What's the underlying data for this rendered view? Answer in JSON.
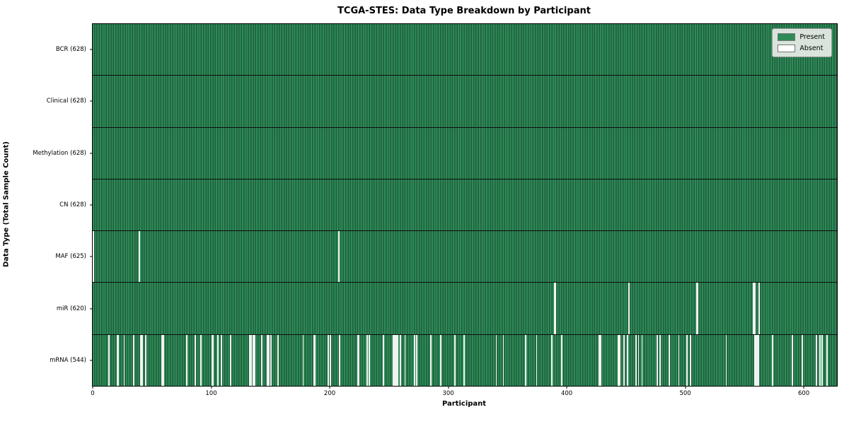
{
  "title": "TCGA-STES: Data Type Breakdown by Participant",
  "chart_data": {
    "type": "heatmap",
    "title": "TCGA-STES: Data Type Breakdown by Participant",
    "xlabel": "Participant",
    "ylabel": "Data Type (Total Sample Count)",
    "x_ticks": [
      0,
      100,
      200,
      300,
      400,
      500,
      600
    ],
    "x_range": [
      0,
      628
    ],
    "total_participants": 628,
    "grid": false,
    "legend": {
      "position": "upper right",
      "entries": [
        {
          "label": "Present",
          "color": "#2e8b57"
        },
        {
          "label": "Absent",
          "color": "#ffffff"
        }
      ]
    },
    "colors": {
      "present_fill": "#2e8b57",
      "present_edge": "#1e5e3c",
      "absent_fill": "#f2f3f1",
      "row_separator": "#0d0d0d"
    },
    "rows": [
      {
        "label": "BCR (628)",
        "data_type": "BCR",
        "present_count": 628,
        "absent_participants": []
      },
      {
        "label": "Clinical (628)",
        "data_type": "Clinical",
        "present_count": 628,
        "absent_participants": []
      },
      {
        "label": "Methylation (628)",
        "data_type": "Methylation",
        "present_count": 628,
        "absent_participants": []
      },
      {
        "label": "CN (628)",
        "data_type": "CN",
        "present_count": 628,
        "absent_participants": []
      },
      {
        "label": "MAF (625)",
        "data_type": "MAF",
        "present_count": 625,
        "absent_participants": [
          0,
          39,
          207
        ]
      },
      {
        "label": "miR (620)",
        "data_type": "miR",
        "present_count": 620,
        "absent_participants": [
          389,
          390,
          452,
          509,
          510,
          557,
          558,
          562
        ]
      },
      {
        "label": "mRNA (544)",
        "data_type": "mRNA",
        "present_count": 544,
        "absent_participants": [
          13,
          20,
          21,
          26,
          34,
          40,
          41,
          44,
          58,
          59,
          79,
          86,
          91,
          100,
          101,
          105,
          108,
          116,
          132,
          133,
          135,
          136,
          142,
          147,
          148,
          150,
          156,
          177,
          186,
          187,
          198,
          200,
          208,
          223,
          224,
          231,
          233,
          245,
          253,
          254,
          255,
          256,
          257,
          259,
          263,
          271,
          273,
          285,
          293,
          305,
          313,
          340,
          346,
          365,
          374,
          387,
          395,
          427,
          428,
          443,
          444,
          448,
          451,
          458,
          460,
          463,
          476,
          478,
          486,
          494,
          501,
          504,
          534,
          558,
          559,
          560,
          561,
          573,
          590,
          598,
          610,
          613,
          615,
          619
        ]
      }
    ]
  }
}
